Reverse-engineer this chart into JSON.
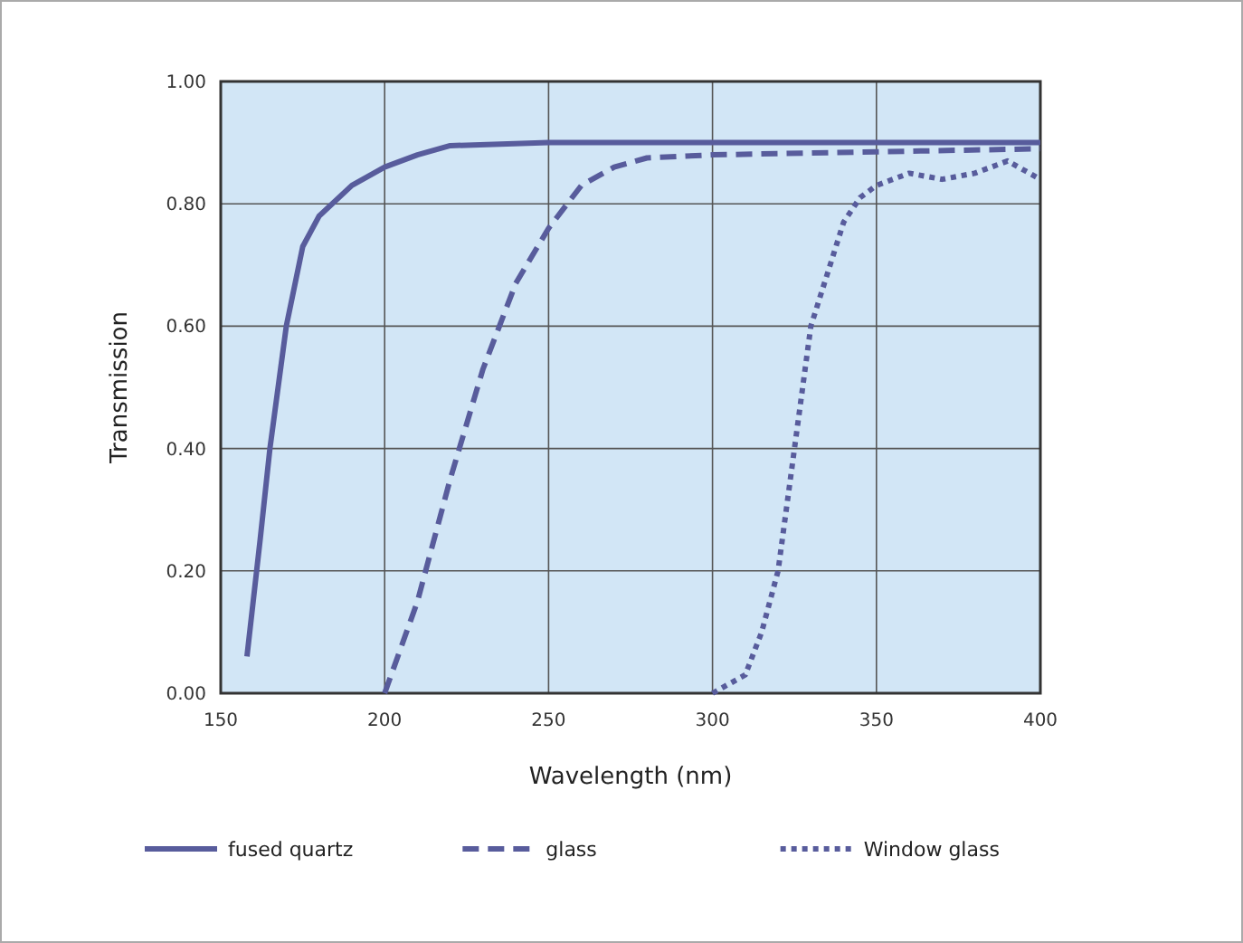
{
  "chart_data": {
    "type": "line",
    "xlabel": "Wavelength (nm)",
    "ylabel": "Transmission",
    "xlim": [
      150,
      400
    ],
    "xticks": [
      150,
      200,
      250,
      300,
      350,
      400
    ],
    "ylim": [
      0,
      1
    ],
    "yticks": [
      {
        "value": 0,
        "label": "0.00"
      },
      {
        "value": 0.2,
        "label": "0.20"
      },
      {
        "value": 0.4,
        "label": "0.40"
      },
      {
        "value": 0.6,
        "label": "0.60"
      },
      {
        "value": 0.8,
        "label": "0.80"
      },
      {
        "value": 1,
        "label": "1.00"
      }
    ],
    "grid": true,
    "legend": "bottom",
    "marker": "none",
    "series": [
      {
        "name": "fused quartz",
        "color": "#585c9c",
        "line_style": "solid",
        "x": [
          158,
          162,
          165,
          170,
          175,
          180,
          190,
          200,
          210,
          220,
          250,
          300,
          350,
          400
        ],
        "values": [
          0.06,
          0.25,
          0.4,
          0.6,
          0.73,
          0.78,
          0.83,
          0.86,
          0.88,
          0.895,
          0.9,
          0.9,
          0.9,
          0.9
        ]
      },
      {
        "name": "glass",
        "color": "#585c9c",
        "line_style": "dashed",
        "x": [
          200,
          210,
          220,
          230,
          240,
          250,
          260,
          270,
          280,
          300,
          350,
          400
        ],
        "values": [
          0,
          0.15,
          0.35,
          0.53,
          0.67,
          0.76,
          0.83,
          0.86,
          0.875,
          0.88,
          0.885,
          0.89
        ]
      },
      {
        "name": "Window glass",
        "color": "#585c9c",
        "line_style": "dotted",
        "x": [
          300,
          310,
          315,
          320,
          325,
          330,
          340,
          345,
          350,
          360,
          370,
          380,
          390,
          400
        ],
        "values": [
          0,
          0.03,
          0.1,
          0.2,
          0.4,
          0.6,
          0.77,
          0.81,
          0.83,
          0.85,
          0.84,
          0.85,
          0.87,
          0.84
        ]
      }
    ]
  }
}
